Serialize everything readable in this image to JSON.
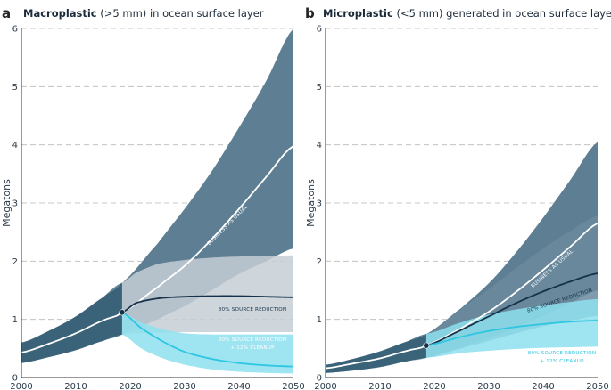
{
  "chart_data": [
    {
      "type": "area",
      "panel_label": "a",
      "title_bold": "Macroplastic",
      "title_rest": " (>5 mm) in ocean surface layer",
      "ylabel": "Megatons",
      "xlim": [
        2000,
        2050
      ],
      "ylim": [
        0,
        6
      ],
      "x_ticks": [
        2000,
        2010,
        2020,
        2030,
        2040,
        2050
      ],
      "y_ticks": [
        0,
        1,
        2,
        3,
        4,
        5,
        6
      ],
      "branch_point": {
        "x": 2018.5,
        "y": 1.12
      },
      "series": [
        {
          "name": "Business as usual",
          "color": "#ffffff",
          "band_color": "#5e7f93",
          "x": [
            2000,
            2005,
            2010,
            2015,
            2018.5,
            2025,
            2030,
            2035,
            2040,
            2045,
            2050
          ],
          "values": [
            0.43,
            0.58,
            0.76,
            0.98,
            1.12,
            1.55,
            1.92,
            2.38,
            2.9,
            3.45,
            3.98
          ],
          "lower": [
            0.25,
            0.35,
            0.47,
            0.63,
            0.74,
            1.0,
            1.23,
            1.5,
            1.78,
            2.0,
            2.22
          ],
          "upper": [
            0.6,
            0.8,
            1.05,
            1.38,
            1.63,
            2.3,
            2.9,
            3.55,
            4.3,
            5.1,
            6.0
          ]
        },
        {
          "name": "80% source reduction",
          "color": "#16324a",
          "band_color": "#c5ced5",
          "x": [
            2018.5,
            2021,
            2025,
            2030,
            2035,
            2040,
            2045,
            2050
          ],
          "values": [
            1.12,
            1.28,
            1.36,
            1.39,
            1.4,
            1.4,
            1.39,
            1.38
          ],
          "lower": [
            0.74,
            0.76,
            0.77,
            0.78,
            0.78,
            0.78,
            0.78,
            0.78
          ],
          "upper": [
            1.63,
            1.8,
            1.95,
            2.02,
            2.06,
            2.08,
            2.09,
            2.1
          ]
        },
        {
          "name": "80% source reduction + 12% cleanup",
          "color": "#2ec6e0",
          "band_color": "#8ee0ee",
          "x": [
            2018.5,
            2022,
            2026,
            2030,
            2035,
            2040,
            2045,
            2050
          ],
          "values": [
            1.12,
            0.85,
            0.62,
            0.44,
            0.32,
            0.25,
            0.21,
            0.19
          ],
          "lower": [
            0.74,
            0.5,
            0.33,
            0.22,
            0.14,
            0.1,
            0.08,
            0.07
          ],
          "upper": [
            1.12,
            0.95,
            0.83,
            0.76,
            0.74,
            0.74,
            0.74,
            0.74
          ]
        }
      ],
      "annotations": {
        "bau": "BUSINESS AS USUAL",
        "reduction": "80% SOURCE REDUCTION",
        "cleanup_line1": "80% SOURCE REDUCTION",
        "cleanup_line2": "+ 12% CLEANUP"
      }
    },
    {
      "type": "area",
      "panel_label": "b",
      "title_bold": "Microplastic",
      "title_rest": " (<5 mm) generated in ocean surface layer",
      "ylabel": "Megatons",
      "xlim": [
        2000,
        2050
      ],
      "ylim": [
        0,
        6
      ],
      "x_ticks": [
        2000,
        2010,
        2020,
        2030,
        2040,
        2050
      ],
      "y_ticks": [
        0,
        1,
        2,
        3,
        4,
        5,
        6
      ],
      "branch_point": {
        "x": 2018.5,
        "y": 0.55
      },
      "series": [
        {
          "name": "Business as usual",
          "color": "#ffffff",
          "band_color": "#5e7f93",
          "x": [
            2000,
            2005,
            2010,
            2015,
            2018.5,
            2025,
            2030,
            2035,
            2040,
            2045,
            2050
          ],
          "values": [
            0.16,
            0.24,
            0.33,
            0.46,
            0.55,
            0.85,
            1.13,
            1.47,
            1.85,
            2.25,
            2.65
          ],
          "lower": [
            0.08,
            0.12,
            0.18,
            0.28,
            0.34,
            0.52,
            0.68,
            0.86,
            1.06,
            1.28,
            1.5
          ],
          "upper": [
            0.22,
            0.32,
            0.45,
            0.62,
            0.75,
            1.2,
            1.62,
            2.15,
            2.75,
            3.4,
            4.05
          ]
        },
        {
          "name": "80% source reduction",
          "color": "#16324a",
          "band_color": "#6b8a9e",
          "x": [
            2018.5,
            2025,
            2030,
            2035,
            2040,
            2045,
            2050
          ],
          "values": [
            0.55,
            0.82,
            1.05,
            1.28,
            1.48,
            1.65,
            1.79
          ],
          "lower": [
            0.34,
            0.5,
            0.63,
            0.76,
            0.88,
            0.98,
            1.06
          ],
          "upper": [
            0.75,
            1.18,
            1.52,
            1.88,
            2.22,
            2.52,
            2.78
          ]
        },
        {
          "name": "80% source reduction + 12% cleanup",
          "color": "#2ec6e0",
          "band_color": "#8ee0ee",
          "x": [
            2018.5,
            2025,
            2030,
            2035,
            2040,
            2045,
            2050
          ],
          "values": [
            0.55,
            0.7,
            0.8,
            0.87,
            0.92,
            0.96,
            0.98
          ],
          "lower": [
            0.34,
            0.42,
            0.46,
            0.49,
            0.51,
            0.52,
            0.53
          ],
          "upper": [
            0.75,
            0.95,
            1.08,
            1.17,
            1.24,
            1.3,
            1.35
          ]
        }
      ],
      "annotations": {
        "bau": "BUSINESS AS USUAL",
        "reduction": "80% SOURCE REDUCTION",
        "cleanup_line1": "80% SOURCE REDUCTION",
        "cleanup_line2": "+ 12% CLEANUP"
      }
    }
  ]
}
